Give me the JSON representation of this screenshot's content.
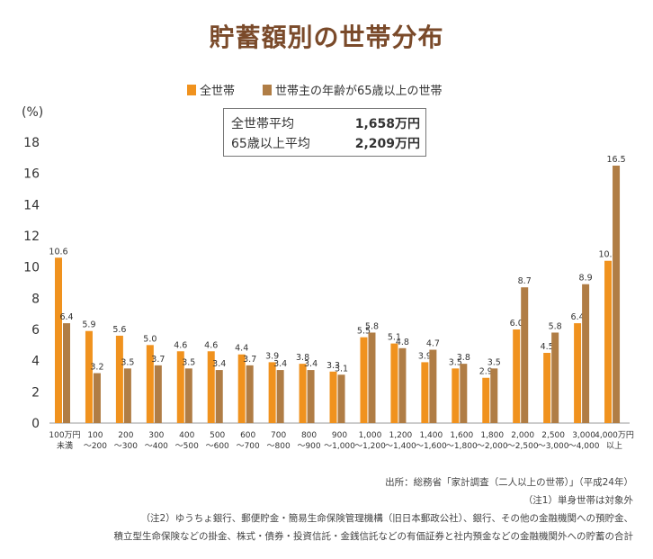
{
  "title": "貯蓄額別の世帯分布",
  "legend": [
    {
      "label": "全世帯",
      "color": "#f0921e"
    },
    {
      "label": "世帯主の年齢が65歳以上の世帯",
      "color": "#b07d45"
    }
  ],
  "y_unit": "(%)",
  "stats_box": {
    "rows": [
      {
        "label": "全世帯平均",
        "value": "1,658万円"
      },
      {
        "label": "65歳以上平均",
        "value": "2,209万円"
      }
    ]
  },
  "chart_data": {
    "type": "bar",
    "title": "貯蓄額別の世帯分布",
    "ylabel": "(%)",
    "ylim": [
      0,
      18
    ],
    "yticks": [
      0,
      2,
      4,
      6,
      8,
      10,
      12,
      14,
      16,
      18
    ],
    "grid": false,
    "categories": [
      [
        "100万円",
        "未満"
      ],
      [
        "100",
        "～200"
      ],
      [
        "200",
        "～300"
      ],
      [
        "300",
        "～400"
      ],
      [
        "400",
        "～500"
      ],
      [
        "500",
        "～600"
      ],
      [
        "600",
        "～700"
      ],
      [
        "700",
        "～800"
      ],
      [
        "800",
        "～900"
      ],
      [
        "900",
        "～1,000"
      ],
      [
        "1,000",
        "～1,200"
      ],
      [
        "1,200",
        "～1,400"
      ],
      [
        "1,400",
        "～1,600"
      ],
      [
        "1,600",
        "～1,800"
      ],
      [
        "1,800",
        "～2,000"
      ],
      [
        "2,000",
        "～2,500"
      ],
      [
        "2,500",
        "～3,000"
      ],
      [
        "3,000",
        "～4,000"
      ],
      [
        "4,000万円",
        "以上"
      ]
    ],
    "series": [
      {
        "name": "全世帯",
        "color": "#f0921e",
        "values": [
          10.6,
          5.9,
          5.6,
          5.0,
          4.6,
          4.6,
          4.4,
          3.9,
          3.8,
          3.3,
          5.5,
          5.1,
          3.9,
          3.5,
          2.9,
          6.0,
          4.5,
          6.4,
          10.4
        ],
        "labels": [
          "10.6",
          "5.9",
          "5.6",
          "5.0",
          "4.6",
          "4.6",
          "4.4",
          "3.9",
          "3.8",
          "3.3",
          "5.5",
          "5.1",
          "3.9",
          "3.5",
          "2.9",
          "6.0",
          "4.5",
          "6.4",
          "10.4"
        ]
      },
      {
        "name": "世帯主の年齢が65歳以上の世帯",
        "color": "#b07d45",
        "values": [
          6.4,
          3.2,
          3.5,
          3.7,
          3.5,
          3.4,
          3.7,
          3.4,
          3.4,
          3.1,
          5.8,
          4.8,
          4.7,
          3.8,
          3.5,
          8.7,
          5.8,
          8.9,
          16.5
        ],
        "labels": [
          "6.4",
          "3.2",
          "3.5",
          "3.7",
          "3.5",
          "3.4",
          "3.7",
          "3.4",
          "3.4",
          "3.1",
          "5.8",
          "4.8",
          "4.7",
          "3.8",
          "3.5",
          "8.7",
          "5.8",
          "8.9",
          "16.5"
        ]
      }
    ]
  },
  "notes": {
    "source": "出所：総務省「家計調査（二人以上の世帯）」（平成24年）",
    "note1": "（注1）単身世帯は対象外",
    "note2a": "（注2）ゆうちょ銀行、郵便貯金・簡易生命保険管理機構（旧日本郵政公社）、銀行、その他の金融機関への預貯金、",
    "note2b": "積立型生命保険などの掛金、株式・債券・投資信託・金銭信託などの有価証券と社内預金などの金融機関外への貯蓄の合計"
  }
}
